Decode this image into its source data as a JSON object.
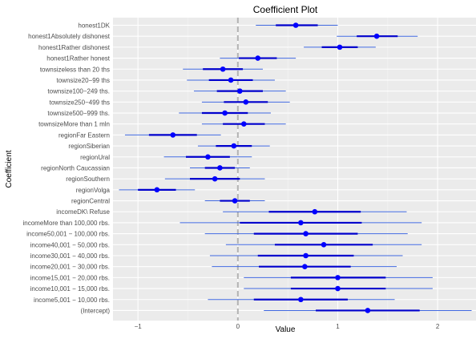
{
  "chart_data": {
    "type": "scatter",
    "title": "Coefficient Plot",
    "xlabel": "Value",
    "ylabel": "Coefficient",
    "xlim": [
      -1.25,
      2.4
    ],
    "x_ticks": [
      -1,
      0,
      1,
      2
    ],
    "x_tick_labels": [
      "−1",
      "0",
      "1",
      "2"
    ],
    "reference_line_x": 0,
    "grid": true,
    "colors": {
      "panel": "#ebebeb",
      "grid_major": "#ffffff",
      "grid_minor": "#f5f5f5",
      "point": "#0000ff",
      "inner_interval": "#0000cd",
      "outer_interval": "#4169e1",
      "reference_line": "#b3b3b3"
    },
    "coefficients": [
      {
        "label": "honest1DK",
        "estimate": 0.58,
        "inner": [
          0.38,
          0.8
        ],
        "outer": [
          0.18,
          1.0
        ]
      },
      {
        "label": "honest1Absolutely dishonest",
        "estimate": 1.39,
        "inner": [
          1.19,
          1.6
        ],
        "outer": [
          0.99,
          1.8
        ]
      },
      {
        "label": "honest1Rather dishonest",
        "estimate": 1.02,
        "inner": [
          0.84,
          1.2
        ],
        "outer": [
          0.66,
          1.38
        ]
      },
      {
        "label": "honest1Rather honest",
        "estimate": 0.2,
        "inner": [
          0.01,
          0.39
        ],
        "outer": [
          -0.18,
          0.58
        ]
      },
      {
        "label": "townsizeless than 20 ths",
        "estimate": -0.15,
        "inner": [
          -0.35,
          0.05
        ],
        "outer": [
          -0.55,
          0.25
        ]
      },
      {
        "label": "townsize20−99 ths",
        "estimate": -0.07,
        "inner": [
          -0.29,
          0.15
        ],
        "outer": [
          -0.51,
          0.37
        ]
      },
      {
        "label": "townsize100−249 ths.",
        "estimate": 0.02,
        "inner": [
          -0.21,
          0.25
        ],
        "outer": [
          -0.44,
          0.48
        ]
      },
      {
        "label": "townsize250−499 ths",
        "estimate": 0.08,
        "inner": [
          -0.14,
          0.3
        ],
        "outer": [
          -0.36,
          0.52
        ]
      },
      {
        "label": "townsize500−999 ths.",
        "estimate": -0.13,
        "inner": [
          -0.36,
          0.1
        ],
        "outer": [
          -0.59,
          0.33
        ]
      },
      {
        "label": "townsizeMore than 1 mln",
        "estimate": 0.06,
        "inner": [
          -0.15,
          0.27
        ],
        "outer": [
          -0.36,
          0.48
        ]
      },
      {
        "label": "regionFar Eastern",
        "estimate": -0.65,
        "inner": [
          -0.89,
          -0.41
        ],
        "outer": [
          -1.13,
          -0.17
        ]
      },
      {
        "label": "regionSiberian",
        "estimate": -0.04,
        "inner": [
          -0.22,
          0.14
        ],
        "outer": [
          -0.4,
          0.32
        ]
      },
      {
        "label": "regionUral",
        "estimate": -0.3,
        "inner": [
          -0.52,
          -0.08
        ],
        "outer": [
          -0.74,
          0.14
        ]
      },
      {
        "label": "regionNorth Caucassian",
        "estimate": -0.18,
        "inner": [
          -0.33,
          -0.03
        ],
        "outer": [
          -0.48,
          0.12
        ]
      },
      {
        "label": "regionSouthern",
        "estimate": -0.23,
        "inner": [
          -0.48,
          0.02
        ],
        "outer": [
          -0.73,
          0.27
        ]
      },
      {
        "label": "regionVolga",
        "estimate": -0.81,
        "inner": [
          -1.0,
          -0.62
        ],
        "outer": [
          -1.19,
          -0.43
        ]
      },
      {
        "label": "regionCentral",
        "estimate": -0.03,
        "inner": [
          -0.18,
          0.12
        ],
        "outer": [
          -0.33,
          0.27
        ]
      },
      {
        "label": "incomeDK\\ Refuse",
        "estimate": 0.77,
        "inner": [
          0.31,
          1.23
        ],
        "outer": [
          -0.15,
          1.69
        ]
      },
      {
        "label": "incomeMore than 100,000 rbs.",
        "estimate": 0.63,
        "inner": [
          0.02,
          1.24
        ],
        "outer": [
          -0.58,
          1.84
        ]
      },
      {
        "label": "income50,001 − 100,000 rbs.",
        "estimate": 0.68,
        "inner": [
          0.16,
          1.2
        ],
        "outer": [
          -0.33,
          1.7
        ]
      },
      {
        "label": "income40,001 − 50,000 rbs.",
        "estimate": 0.86,
        "inner": [
          0.37,
          1.35
        ],
        "outer": [
          -0.12,
          1.84
        ]
      },
      {
        "label": "income30,001 − 40,000 rbs.",
        "estimate": 0.68,
        "inner": [
          0.2,
          1.16
        ],
        "outer": [
          -0.28,
          1.65
        ]
      },
      {
        "label": "income20,001 − 30,000 rbs.",
        "estimate": 0.67,
        "inner": [
          0.21,
          1.13
        ],
        "outer": [
          -0.26,
          1.59
        ]
      },
      {
        "label": "income15,001 − 20,000 rbs.",
        "estimate": 1.0,
        "inner": [
          0.53,
          1.48
        ],
        "outer": [
          0.06,
          1.95
        ]
      },
      {
        "label": "income10,001 − 15,000 rbs.",
        "estimate": 1.0,
        "inner": [
          0.53,
          1.48
        ],
        "outer": [
          0.06,
          1.95
        ]
      },
      {
        "label": "income5,001 − 10,000 rbs.",
        "estimate": 0.63,
        "inner": [
          0.16,
          1.1
        ],
        "outer": [
          -0.3,
          1.57
        ]
      },
      {
        "label": "(Intercept)",
        "estimate": 1.3,
        "inner": [
          0.78,
          1.82
        ],
        "outer": [
          0.26,
          2.34
        ]
      }
    ]
  }
}
